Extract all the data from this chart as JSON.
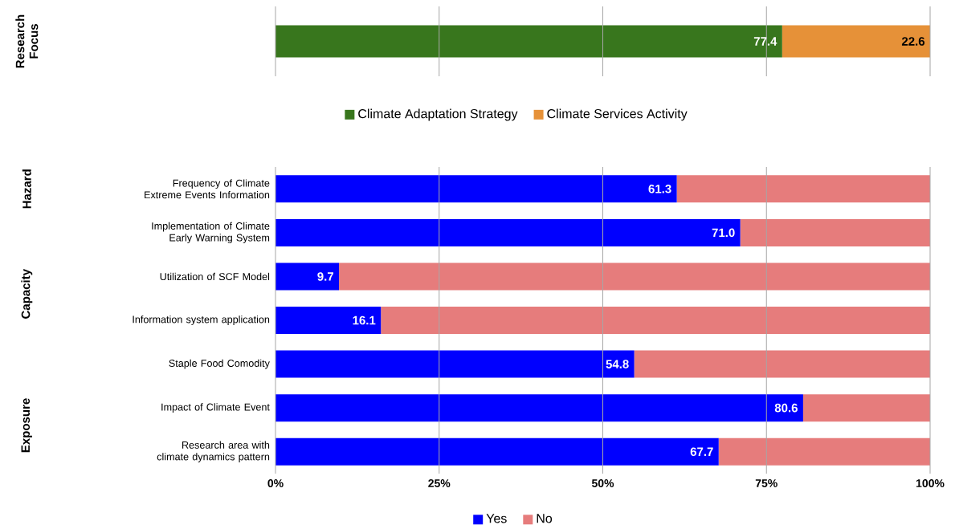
{
  "chart_data": [
    {
      "type": "bar",
      "orientation": "horizontal",
      "stacked": true,
      "ylabel": "Research Focus",
      "categories": [
        null
      ],
      "series": [
        {
          "name": "Climate Adaptation Strategy",
          "color": "#38761d",
          "values": [
            77.4
          ],
          "value_labels": [
            "77.4"
          ]
        },
        {
          "name": "Climate Services Activity",
          "color": "#e69138",
          "values": [
            22.6
          ],
          "value_labels": [
            "22.6"
          ]
        }
      ],
      "xlim": [
        0,
        100
      ],
      "xticks": [
        0,
        25,
        50,
        75,
        100
      ],
      "tick_labels": false,
      "grid": "x",
      "legend": "bottom"
    },
    {
      "type": "bar",
      "orientation": "horizontal",
      "stacked": true,
      "categories": [
        "Frequency of Climate Extreme Events Information",
        "Implementation of Climate Early Warning System",
        "Utilization of SCF Model",
        "Information system application",
        "Staple Food Comodity",
        "Impact of Climate Event",
        "Research area with climate dynamics pattern"
      ],
      "series": [
        {
          "name": "Yes",
          "color": "#0000ff",
          "values": [
            61.3,
            71.0,
            9.7,
            16.1,
            54.8,
            80.6,
            67.7
          ],
          "value_labels": [
            "61.3",
            "71.0",
            "9.7",
            "16.1",
            "54.8",
            "80.6",
            "67.7"
          ]
        },
        {
          "name": "No",
          "color": "#e67c7c",
          "values": [
            38.7,
            29.0,
            90.3,
            83.9,
            45.2,
            19.4,
            32.3
          ]
        }
      ],
      "xlim": [
        0,
        100
      ],
      "xticks": [
        {
          "value": 0,
          "label": "0%"
        },
        {
          "value": 25,
          "label": "25%"
        },
        {
          "value": 50,
          "label": "50%"
        },
        {
          "value": 75,
          "label": "75%"
        },
        {
          "value": 100,
          "label": "100%"
        }
      ],
      "grid": "x",
      "legend": "bottom",
      "annotations": [
        "Hazard",
        "Capacity",
        "Exposure"
      ]
    }
  ]
}
